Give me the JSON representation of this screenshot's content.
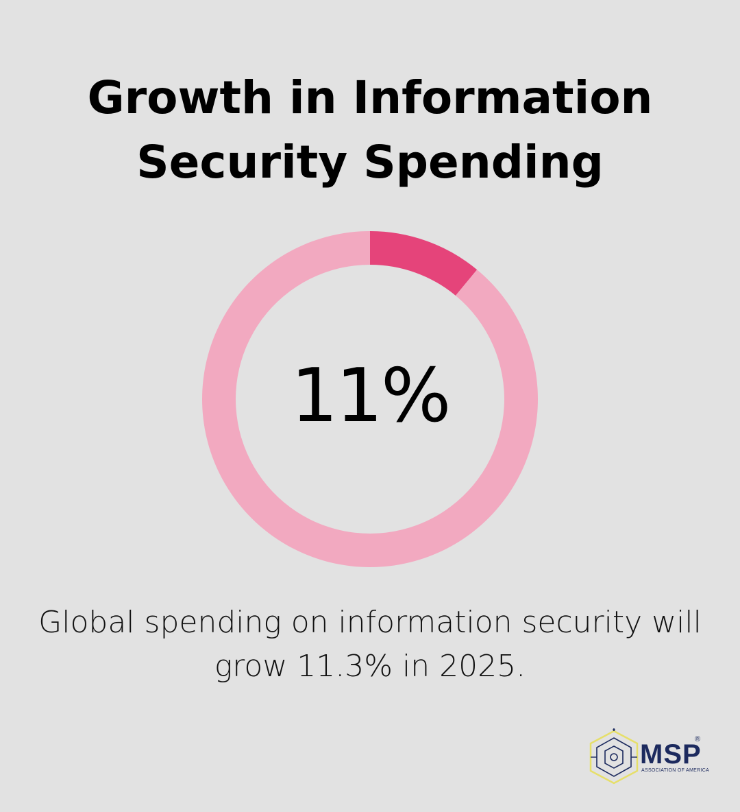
{
  "title": {
    "line1": "Growth in Information",
    "line2": "Security Spending"
  },
  "chart_data": {
    "type": "pie",
    "variant": "donut",
    "center_label": "11%",
    "slices": [
      {
        "value": 11,
        "color": "#e5447a"
      },
      {
        "value": 89,
        "color": "#f2a9c0"
      }
    ]
  },
  "caption": {
    "line1": "Global spending on information security will",
    "line2": "grow 11.3% in 2025."
  },
  "logo": {
    "name": "MSP",
    "tagline": "ASSOCIATION OF AMERICA",
    "registered_mark": "®",
    "colors": {
      "text": "#1c2a5e",
      "mark": "#e6df6a"
    }
  },
  "colors": {
    "background": "#e2e2e2",
    "accent": "#e5447a",
    "track": "#f2a9c0"
  }
}
